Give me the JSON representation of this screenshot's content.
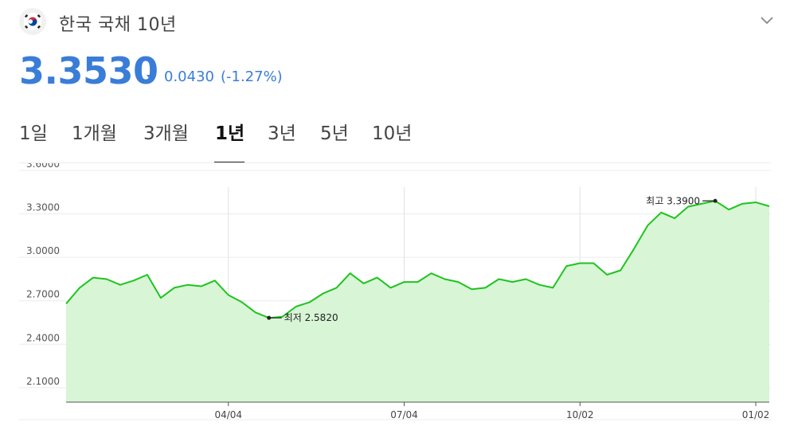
{
  "header": {
    "flag_icon": "south-korea-flag-icon",
    "title": "한국 국채 10년",
    "expand_icon": "chevron-down-icon"
  },
  "quote": {
    "price": "3.3530",
    "change": "0.0430",
    "change_pct": "(-1.27%)",
    "direction": "down",
    "color": "#3a7dd8"
  },
  "tabs": [
    {
      "label": "1일",
      "active": false
    },
    {
      "label": "1개월",
      "active": false
    },
    {
      "label": "3개월",
      "active": false
    },
    {
      "label": "1년",
      "active": true
    },
    {
      "label": "3년",
      "active": false
    },
    {
      "label": "5년",
      "active": false
    },
    {
      "label": "10년",
      "active": false
    }
  ],
  "chart_data": {
    "type": "area",
    "line_color": "#1ec41e",
    "fill_color": "#d8f5d6",
    "ylim": [
      2.0,
      3.65
    ],
    "yticks": [
      "3.6000",
      "3.3000",
      "3.0000",
      "2.7000",
      "2.4000",
      "2.1000"
    ],
    "ytick_values": [
      3.6,
      3.3,
      3.0,
      2.7,
      2.4,
      2.1
    ],
    "xticks": [
      "04/04",
      "07/04",
      "10/02",
      "01/02"
    ],
    "xtick_index": [
      12,
      25,
      38,
      51
    ],
    "grid": true,
    "values": [
      2.68,
      2.79,
      2.86,
      2.85,
      2.81,
      2.84,
      2.88,
      2.72,
      2.79,
      2.81,
      2.8,
      2.84,
      2.74,
      2.69,
      2.62,
      2.582,
      2.59,
      2.66,
      2.69,
      2.75,
      2.79,
      2.89,
      2.82,
      2.86,
      2.79,
      2.83,
      2.83,
      2.89,
      2.85,
      2.83,
      2.78,
      2.79,
      2.85,
      2.83,
      2.85,
      2.81,
      2.79,
      2.94,
      2.96,
      2.96,
      2.88,
      2.91,
      3.06,
      3.22,
      3.31,
      3.27,
      3.35,
      3.37,
      3.39,
      3.33,
      3.37,
      3.38,
      3.353
    ],
    "annotations": [
      {
        "label": "최고 3.3900",
        "index": 48,
        "value": 3.39,
        "side": "left"
      },
      {
        "label": "최저 2.5820",
        "index": 15,
        "value": 2.582,
        "side": "right"
      }
    ]
  }
}
